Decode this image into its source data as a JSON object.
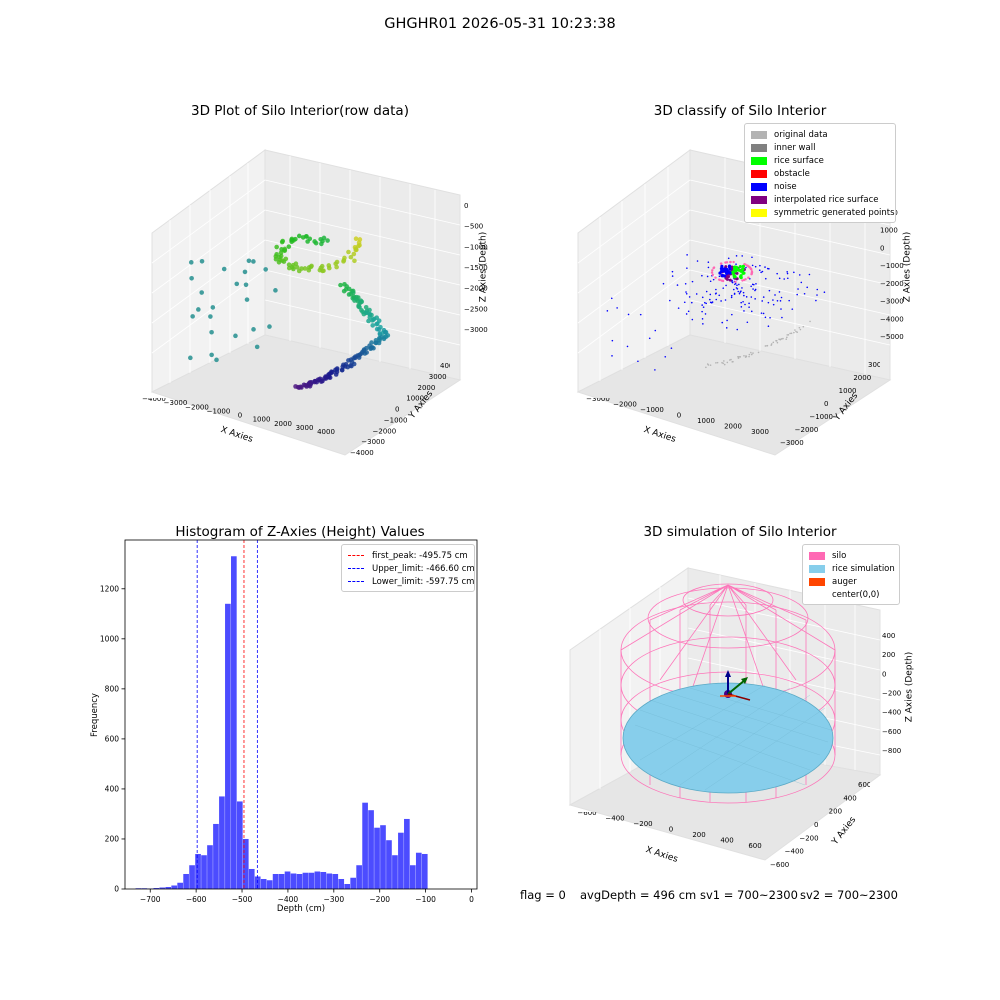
{
  "suptitle": "GHGHR01 2026-05-31 10:23:38",
  "panels": {
    "raw": {
      "title": "3D Plot of Silo Interior(row data)",
      "xlabel": "X Axies",
      "ylabel": "Y Axies",
      "zlabel": "Z Axies (Depth)",
      "xticks": [
        "−4000",
        "−3000",
        "−2000",
        "−1000",
        "0",
        "1000",
        "2000",
        "3000",
        "4000"
      ],
      "yticks": [
        "−4000",
        "−3000",
        "−2000",
        "−1000",
        "0",
        "1000",
        "2000",
        "3000",
        "4000"
      ],
      "zticks": [
        "0",
        "−500",
        "−1000",
        "−1500",
        "−2000",
        "−2500",
        "−3000"
      ]
    },
    "classify": {
      "title": "3D classify of Silo Interior",
      "xlabel": "X Axies",
      "ylabel": "Y Axies",
      "zlabel": "Z Axies (Depth)",
      "xticks": [
        "−3000",
        "−2000",
        "−1000",
        "0",
        "1000",
        "2000",
        "3000"
      ],
      "yticks": [
        "−3000",
        "−2000",
        "−1000",
        "0",
        "1000",
        "2000",
        "3000"
      ],
      "zticks": [
        "2000",
        "1000",
        "0",
        "−1000",
        "−2000",
        "−3000",
        "−4000",
        "−5000"
      ],
      "legend": [
        {
          "label": "original data",
          "color": "#b3b3b3"
        },
        {
          "label": "inner wall",
          "color": "#808080"
        },
        {
          "label": "rice surface",
          "color": "#00ff00"
        },
        {
          "label": "obstacle",
          "color": "#ff0000"
        },
        {
          "label": "noise",
          "color": "#0000ff"
        },
        {
          "label": "interpolated rice surface",
          "color": "#800080"
        },
        {
          "label": "symmetric generated points",
          "color": "#ffff00"
        }
      ]
    },
    "simulation": {
      "title": "3D simulation of Silo Interior",
      "xlabel": "X Axies",
      "ylabel": "Y Axies",
      "zlabel": "Z Axies (Depth)",
      "xticks": [
        "−600",
        "−400",
        "−200",
        "0",
        "200",
        "400",
        "600"
      ],
      "yticks": [
        "−600",
        "−400",
        "−200",
        "0",
        "200",
        "400",
        "600"
      ],
      "zticks": [
        "400",
        "200",
        "0",
        "−200",
        "−400",
        "−600",
        "−800"
      ],
      "legend": [
        {
          "label": "silo",
          "color": "#ff69b4"
        },
        {
          "label": "rice simulation",
          "color": "#87ceeb"
        },
        {
          "label": "auger",
          "color": "#ff4500"
        },
        {
          "label": "center(0,0)",
          "color": ""
        }
      ]
    }
  },
  "status": {
    "flag": "flag = 0",
    "avg_depth": "avgDepth = 496 cm",
    "sv1": "sv1 = 700~2300",
    "sv2": "sv2 = 700~2300"
  },
  "chart_data": {
    "type": "bar",
    "title": "Histogram of Z-Axies (Height) Values",
    "xlabel": "Depth (cm)",
    "ylabel": "Frequency",
    "xlim": [
      -755,
      12
    ],
    "ylim": [
      0,
      1395
    ],
    "xticks": [
      -700,
      -600,
      -500,
      -400,
      -300,
      -200,
      -100,
      0
    ],
    "yticks": [
      0,
      200,
      400,
      600,
      800,
      1000,
      1200
    ],
    "bar_color": "#0000ff",
    "bins": [
      {
        "x0": -732,
        "x1": -719,
        "count": 3
      },
      {
        "x0": -719,
        "x1": -706,
        "count": 3
      },
      {
        "x0": -706,
        "x1": -693,
        "count": 2
      },
      {
        "x0": -693,
        "x1": -680,
        "count": 4
      },
      {
        "x0": -680,
        "x1": -667,
        "count": 6
      },
      {
        "x0": -667,
        "x1": -654,
        "count": 8
      },
      {
        "x0": -654,
        "x1": -641,
        "count": 14
      },
      {
        "x0": -641,
        "x1": -628,
        "count": 25
      },
      {
        "x0": -628,
        "x1": -615,
        "count": 60
      },
      {
        "x0": -615,
        "x1": -602,
        "count": 95
      },
      {
        "x0": -602,
        "x1": -589,
        "count": 140
      },
      {
        "x0": -589,
        "x1": -576,
        "count": 135
      },
      {
        "x0": -576,
        "x1": -563,
        "count": 175
      },
      {
        "x0": -563,
        "x1": -550,
        "count": 260
      },
      {
        "x0": -550,
        "x1": -537,
        "count": 370
      },
      {
        "x0": -537,
        "x1": -524,
        "count": 1140
      },
      {
        "x0": -524,
        "x1": -511,
        "count": 1330
      },
      {
        "x0": -511,
        "x1": -498,
        "count": 350
      },
      {
        "x0": -498,
        "x1": -485,
        "count": 200
      },
      {
        "x0": -485,
        "x1": -472,
        "count": 80
      },
      {
        "x0": -472,
        "x1": -459,
        "count": 50
      },
      {
        "x0": -459,
        "x1": -446,
        "count": 40
      },
      {
        "x0": -446,
        "x1": -433,
        "count": 35
      },
      {
        "x0": -433,
        "x1": -420,
        "count": 60
      },
      {
        "x0": -420,
        "x1": -407,
        "count": 60
      },
      {
        "x0": -407,
        "x1": -394,
        "count": 70
      },
      {
        "x0": -394,
        "x1": -381,
        "count": 62
      },
      {
        "x0": -381,
        "x1": -368,
        "count": 60
      },
      {
        "x0": -368,
        "x1": -355,
        "count": 65
      },
      {
        "x0": -355,
        "x1": -342,
        "count": 65
      },
      {
        "x0": -342,
        "x1": -329,
        "count": 70
      },
      {
        "x0": -329,
        "x1": -316,
        "count": 68
      },
      {
        "x0": -316,
        "x1": -303,
        "count": 62
      },
      {
        "x0": -303,
        "x1": -290,
        "count": 60
      },
      {
        "x0": -290,
        "x1": -277,
        "count": 40
      },
      {
        "x0": -277,
        "x1": -264,
        "count": 20
      },
      {
        "x0": -264,
        "x1": -251,
        "count": 45
      },
      {
        "x0": -251,
        "x1": -238,
        "count": 95
      },
      {
        "x0": -238,
        "x1": -225,
        "count": 345
      },
      {
        "x0": -225,
        "x1": -212,
        "count": 315
      },
      {
        "x0": -212,
        "x1": -199,
        "count": 245
      },
      {
        "x0": -199,
        "x1": -186,
        "count": 255
      },
      {
        "x0": -186,
        "x1": -173,
        "count": 195
      },
      {
        "x0": -173,
        "x1": -160,
        "count": 135
      },
      {
        "x0": -160,
        "x1": -147,
        "count": 225
      },
      {
        "x0": -147,
        "x1": -134,
        "count": 280
      },
      {
        "x0": -134,
        "x1": -121,
        "count": 95
      },
      {
        "x0": -121,
        "x1": -108,
        "count": 145
      },
      {
        "x0": -108,
        "x1": -95,
        "count": 140
      }
    ],
    "vlines": [
      {
        "label": "first_peak: -495.75 cm",
        "x": -495.75,
        "color": "#ff0000"
      },
      {
        "label": "Upper_limit: -466.60 cm",
        "x": -466.6,
        "color": "#0000ff"
      },
      {
        "label": "Lower_limit: -597.75 cm",
        "x": -597.75,
        "color": "#0000ff"
      }
    ]
  }
}
